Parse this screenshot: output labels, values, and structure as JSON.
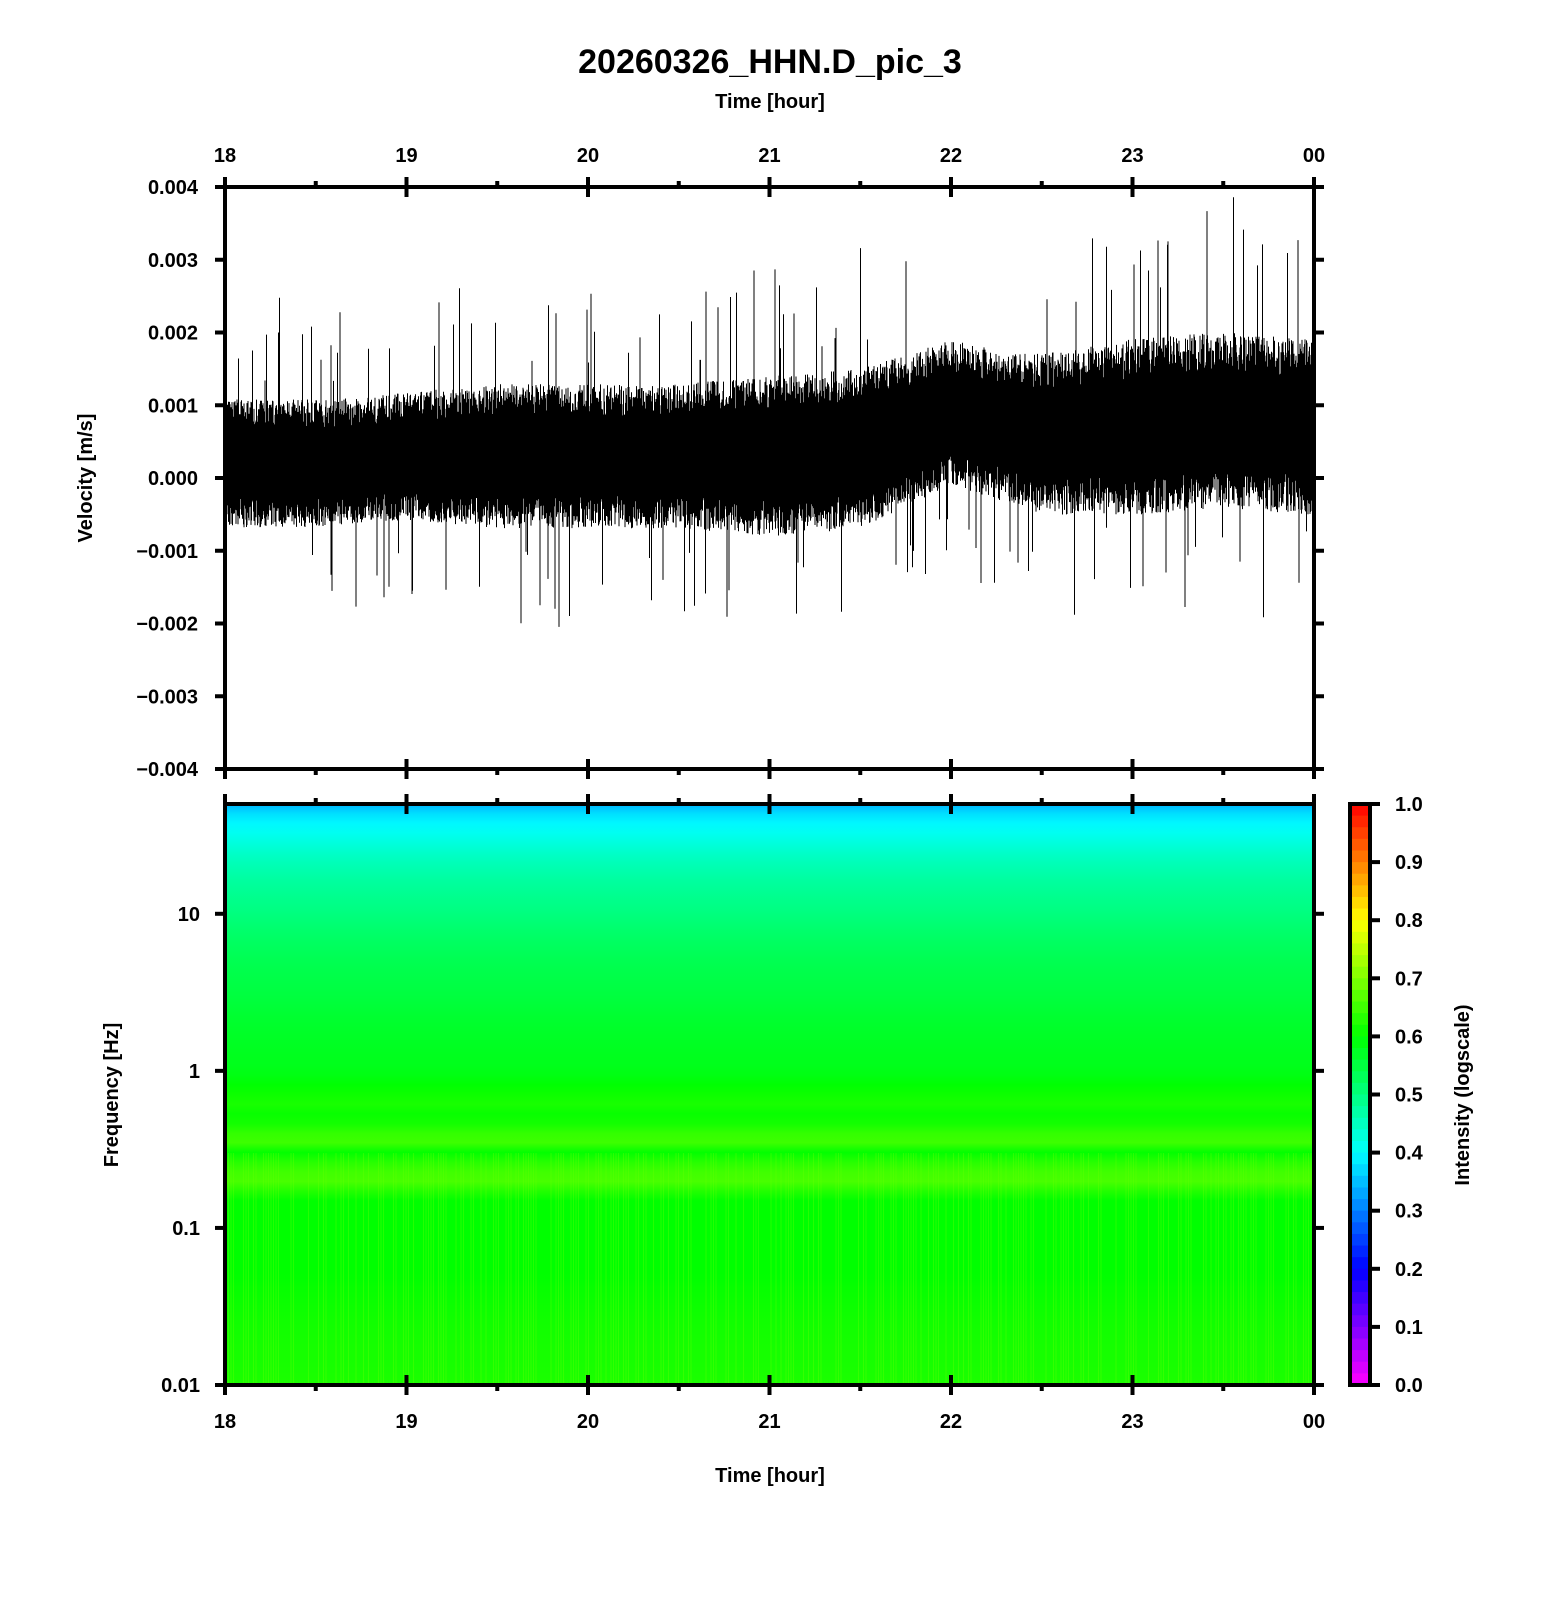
{
  "chart_data": [
    {
      "type": "line",
      "title": "20260326_HHN.D_pic_3",
      "top_xlabel": "Time [hour]",
      "ylabel": "Velocity [m/s]",
      "x_ticks": [
        "18",
        "19",
        "20",
        "21",
        "22",
        "23",
        "00"
      ],
      "x_range_hours": [
        18,
        24
      ],
      "ylim": [
        -0.004,
        0.004
      ],
      "y_ticks": [
        "0.004",
        "0.003",
        "0.002",
        "0.001",
        "0.000",
        "−0.001",
        "−0.002",
        "−0.003",
        "−0.004"
      ],
      "y_tick_values": [
        0.004,
        0.003,
        0.002,
        0.001,
        0,
        -0.001,
        -0.002,
        -0.003,
        -0.004
      ],
      "envelope": {
        "time_hours": [
          18.0,
          18.5,
          19.0,
          19.5,
          20.0,
          20.5,
          21.0,
          21.5,
          22.0,
          22.5,
          23.0,
          23.5,
          24.0
        ],
        "center": [
          0.0002,
          0.0002,
          0.0003,
          0.0003,
          0.0003,
          0.0003,
          0.0003,
          0.0004,
          0.0009,
          0.0006,
          0.0007,
          0.0008,
          0.0007
        ],
        "half_width": [
          0.0008,
          0.0008,
          0.0008,
          0.0009,
          0.0009,
          0.0009,
          0.001,
          0.001,
          0.0009,
          0.001,
          0.0011,
          0.0011,
          0.0011
        ]
      },
      "series_color": "#000000"
    },
    {
      "type": "heatmap",
      "xlabel": "Time [hour]",
      "ylabel": "Frequency [Hz]",
      "x_ticks": [
        "18",
        "19",
        "20",
        "21",
        "22",
        "23",
        "00"
      ],
      "y_scale": "log",
      "ylim_hz": [
        0.01,
        50
      ],
      "y_ticks": [
        "10",
        "1",
        "0.1",
        "0.01"
      ],
      "y_tick_values": [
        10,
        1,
        0.1,
        0.01
      ],
      "intensity_profile": {
        "frequency_hz": [
          0.01,
          0.05,
          0.15,
          0.2,
          0.25,
          0.3,
          0.35,
          0.4,
          0.5,
          0.6,
          1,
          3,
          10,
          20,
          30,
          45,
          50
        ],
        "intensity": [
          0.62,
          0.6,
          0.6,
          0.66,
          0.64,
          0.6,
          0.65,
          0.64,
          0.6,
          0.62,
          0.58,
          0.55,
          0.5,
          0.46,
          0.42,
          0.37,
          0.34
        ]
      },
      "colorbar": {
        "label": "Intensity (logscale)",
        "ticks": [
          "1.0",
          "0.9",
          "0.8",
          "0.7",
          "0.6",
          "0.5",
          "0.4",
          "0.3",
          "0.2",
          "0.1",
          "0.0"
        ],
        "range": [
          0,
          1
        ],
        "colors": [
          "#ff00ff",
          "#0000ff",
          "#00ffff",
          "#00ff00",
          "#ffff00",
          "#ff0000"
        ]
      }
    }
  ]
}
